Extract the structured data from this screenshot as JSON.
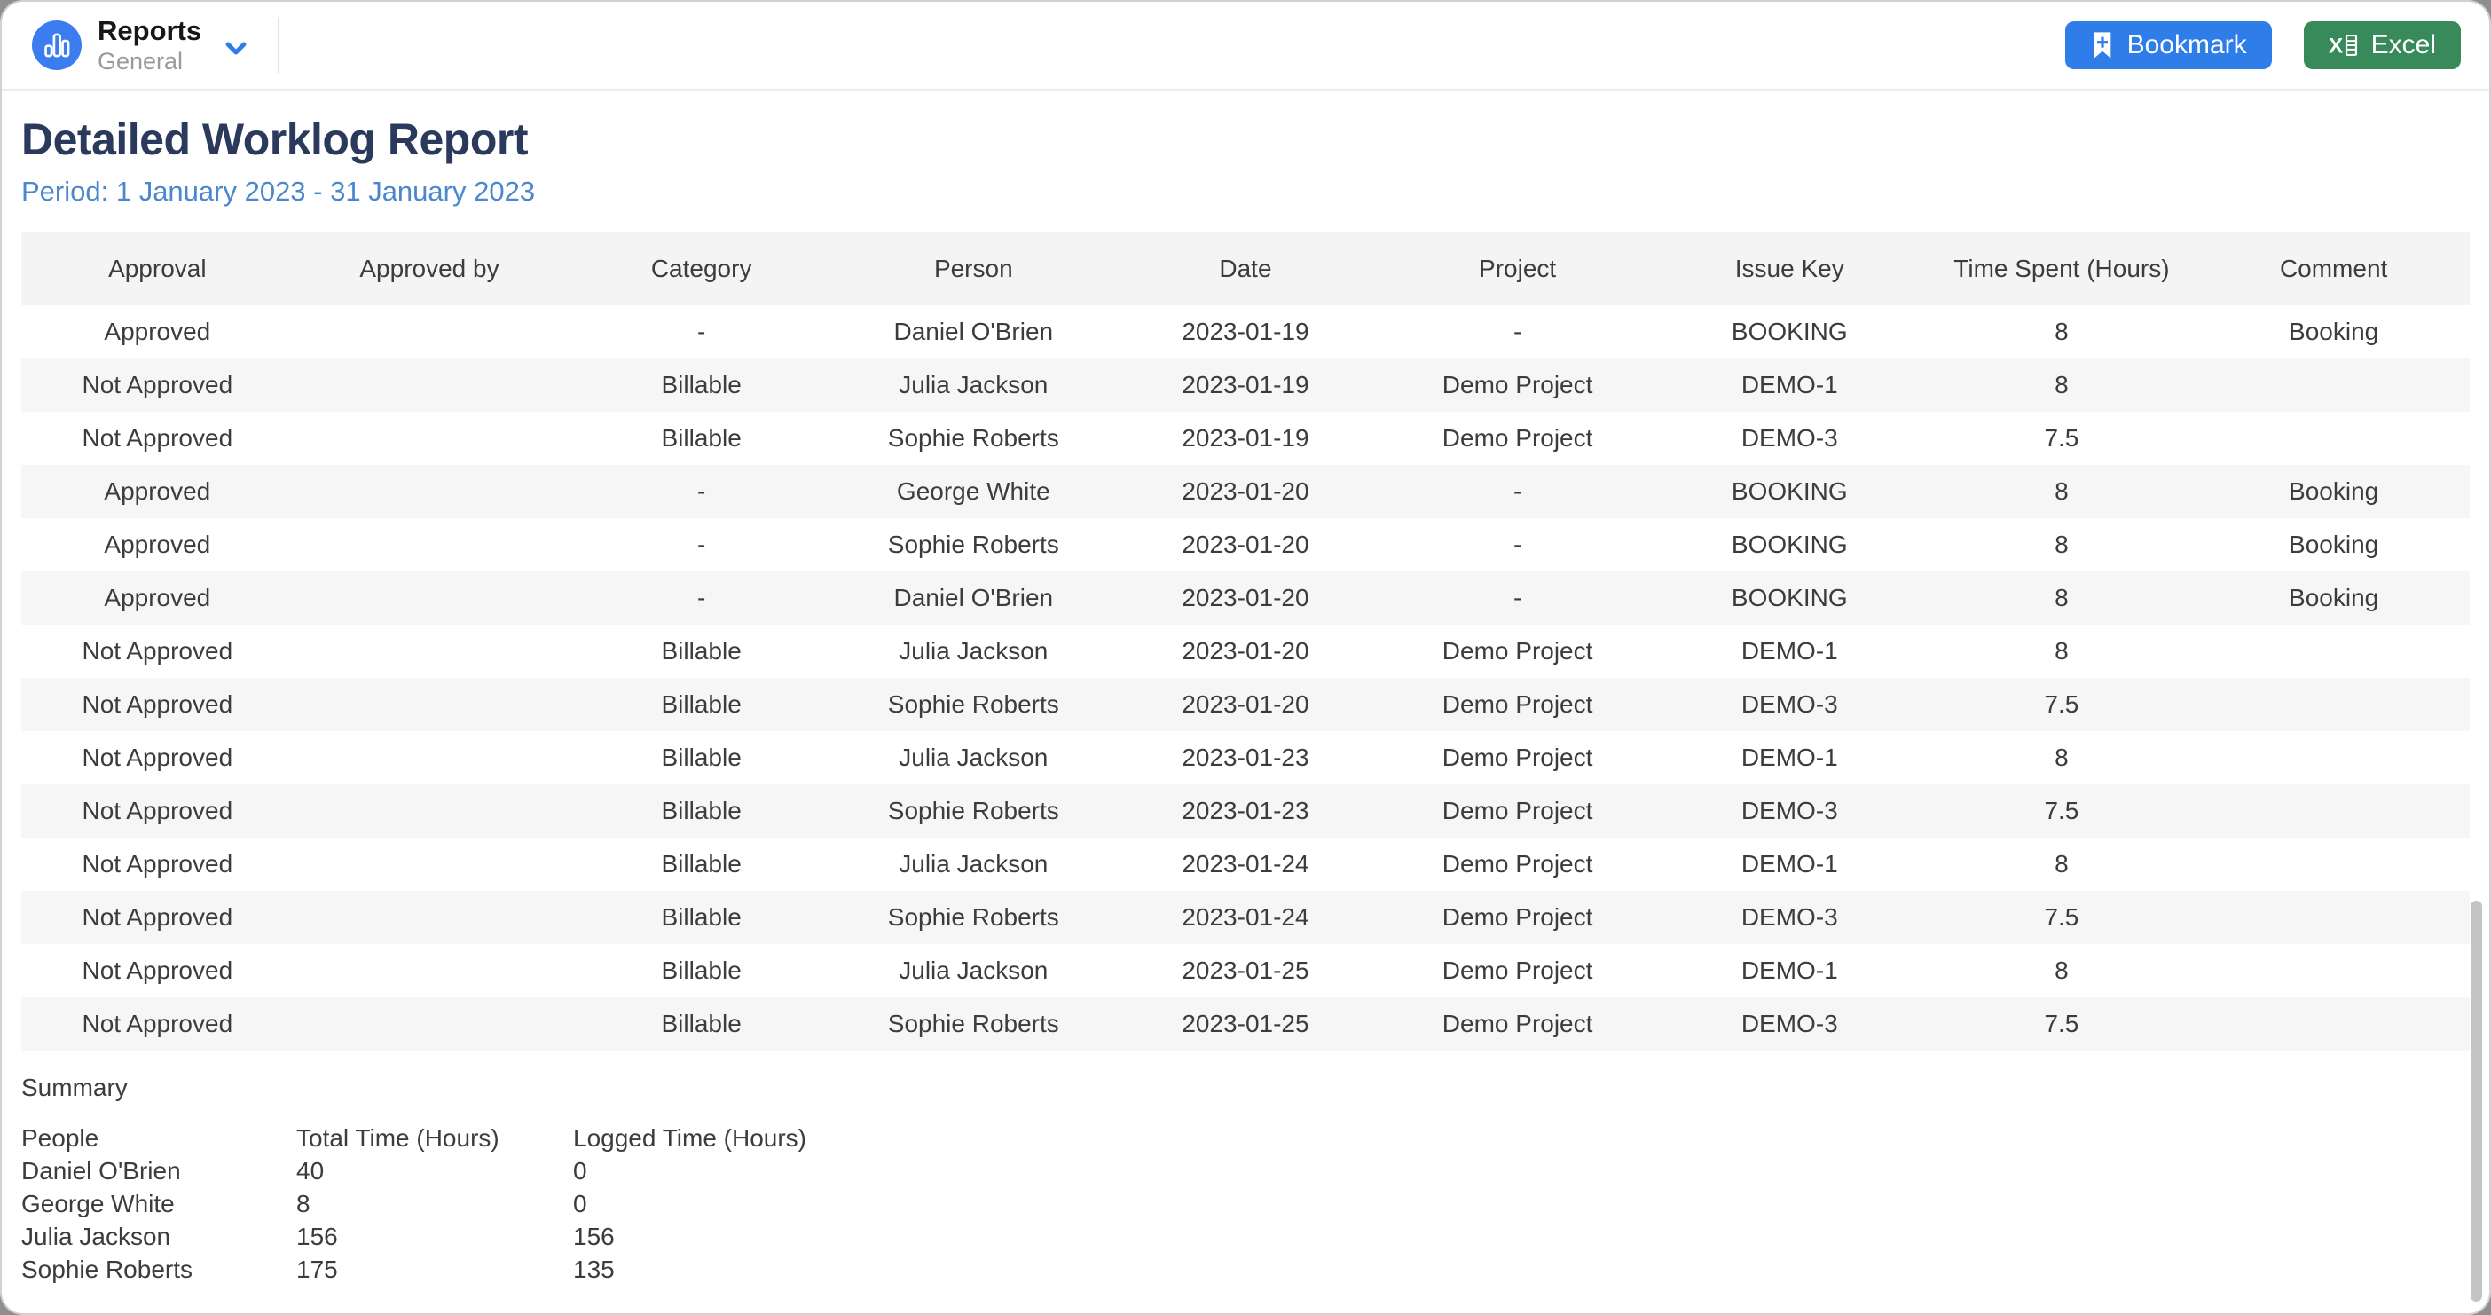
{
  "header": {
    "app_title": "Reports",
    "app_subtitle": "General",
    "bookmark_label": "Bookmark",
    "excel_label": "Excel"
  },
  "report": {
    "title": "Detailed Worklog Report",
    "period": "Period: 1 January 2023 - 31 January 2023"
  },
  "table": {
    "columns": [
      "Approval",
      "Approved by",
      "Category",
      "Person",
      "Date",
      "Project",
      "Issue Key",
      "Time Spent (Hours)",
      "Comment"
    ],
    "rows": [
      [
        "Approved",
        "",
        "-",
        "Daniel O'Brien",
        "2023-01-19",
        "-",
        "BOOKING",
        "8",
        "Booking"
      ],
      [
        "Not Approved",
        "",
        "Billable",
        "Julia Jackson",
        "2023-01-19",
        "Demo Project",
        "DEMO-1",
        "8",
        ""
      ],
      [
        "Not Approved",
        "",
        "Billable",
        "Sophie Roberts",
        "2023-01-19",
        "Demo Project",
        "DEMO-3",
        "7.5",
        ""
      ],
      [
        "Approved",
        "",
        "-",
        "George White",
        "2023-01-20",
        "-",
        "BOOKING",
        "8",
        "Booking"
      ],
      [
        "Approved",
        "",
        "-",
        "Sophie Roberts",
        "2023-01-20",
        "-",
        "BOOKING",
        "8",
        "Booking"
      ],
      [
        "Approved",
        "",
        "-",
        "Daniel O'Brien",
        "2023-01-20",
        "-",
        "BOOKING",
        "8",
        "Booking"
      ],
      [
        "Not Approved",
        "",
        "Billable",
        "Julia Jackson",
        "2023-01-20",
        "Demo Project",
        "DEMO-1",
        "8",
        ""
      ],
      [
        "Not Approved",
        "",
        "Billable",
        "Sophie Roberts",
        "2023-01-20",
        "Demo Project",
        "DEMO-3",
        "7.5",
        ""
      ],
      [
        "Not Approved",
        "",
        "Billable",
        "Julia Jackson",
        "2023-01-23",
        "Demo Project",
        "DEMO-1",
        "8",
        ""
      ],
      [
        "Not Approved",
        "",
        "Billable",
        "Sophie Roberts",
        "2023-01-23",
        "Demo Project",
        "DEMO-3",
        "7.5",
        ""
      ],
      [
        "Not Approved",
        "",
        "Billable",
        "Julia Jackson",
        "2023-01-24",
        "Demo Project",
        "DEMO-1",
        "8",
        ""
      ],
      [
        "Not Approved",
        "",
        "Billable",
        "Sophie Roberts",
        "2023-01-24",
        "Demo Project",
        "DEMO-3",
        "7.5",
        ""
      ],
      [
        "Not Approved",
        "",
        "Billable",
        "Julia Jackson",
        "2023-01-25",
        "Demo Project",
        "DEMO-1",
        "8",
        ""
      ],
      [
        "Not Approved",
        "",
        "Billable",
        "Sophie Roberts",
        "2023-01-25",
        "Demo Project",
        "DEMO-3",
        "7.5",
        ""
      ]
    ]
  },
  "summary": {
    "label": "Summary",
    "columns": [
      "People",
      "Total Time (Hours)",
      "Logged Time (Hours)"
    ],
    "rows": [
      [
        "Daniel O'Brien",
        "40",
        "0"
      ],
      [
        "George White",
        "8",
        "0"
      ],
      [
        "Julia Jackson",
        "156",
        "156"
      ],
      [
        "Sophie Roberts",
        "175",
        "135"
      ]
    ]
  },
  "colors": {
    "accent_blue": "#2f7de9",
    "excel_green": "#388a5a",
    "logo_blue": "#3b7df0",
    "title_navy": "#2b3a5c",
    "period_blue": "#4a87cf",
    "stripe_gray": "#f6f6f6",
    "header_gray": "#f4f4f4"
  }
}
